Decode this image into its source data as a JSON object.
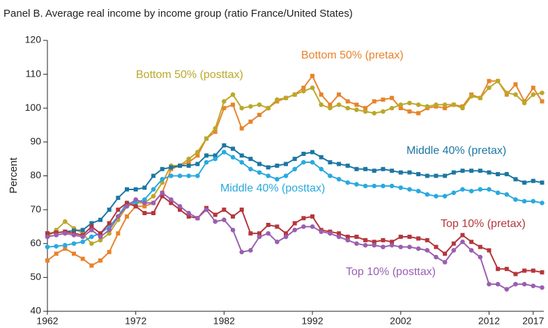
{
  "chart_data": {
    "type": "line",
    "title": "Panel B. Average real income by income group (ratio France/United States)",
    "ylabel": "Percent",
    "x": [
      1962,
      1963,
      1964,
      1965,
      1966,
      1967,
      1968,
      1969,
      1970,
      1971,
      1972,
      1973,
      1974,
      1975,
      1976,
      1977,
      1978,
      1979,
      1980,
      1981,
      1982,
      1983,
      1984,
      1985,
      1986,
      1987,
      1988,
      1989,
      1990,
      1991,
      1992,
      1993,
      1994,
      1995,
      1996,
      1997,
      1998,
      1999,
      2000,
      2001,
      2002,
      2003,
      2004,
      2005,
      2006,
      2007,
      2008,
      2009,
      2010,
      2011,
      2012,
      2013,
      2014,
      2015,
      2016,
      2017,
      2018
    ],
    "xlim": [
      1962,
      2018.2
    ],
    "xticks": [
      1962,
      1972,
      1982,
      1992,
      2002,
      2012,
      2017
    ],
    "ylim": [
      40,
      120
    ],
    "yticks": [
      40,
      50,
      60,
      70,
      80,
      90,
      100,
      110,
      120
    ],
    "series": [
      {
        "name": "Bottom 50% (pretax)",
        "color": "#e8832a",
        "marker": "square",
        "values": [
          55,
          57,
          58.5,
          57,
          55.5,
          53.5,
          55,
          57.5,
          63,
          68,
          71,
          71,
          72,
          75,
          82,
          83,
          84,
          86,
          91,
          93,
          100,
          101,
          94,
          96,
          98,
          100,
          102,
          103,
          104,
          106,
          109.5,
          104,
          101,
          104,
          102,
          101,
          100,
          102,
          102.5,
          103,
          100,
          99,
          98.5,
          100,
          100.5,
          100,
          101,
          100.5,
          104,
          103,
          108,
          108,
          104,
          107,
          102,
          106,
          102
        ]
      },
      {
        "name": "Bottom 50% (posttax)",
        "color": "#bba82a",
        "marker": "circle",
        "values": [
          62,
          64,
          66.5,
          64.5,
          63,
          60,
          61,
          63,
          67,
          71,
          72,
          72,
          74,
          78,
          83,
          83,
          85,
          87,
          91,
          94,
          102,
          104,
          100,
          100.5,
          101,
          100,
          102.5,
          103,
          104,
          105,
          106,
          101,
          100,
          101,
          100,
          99.5,
          99,
          98.5,
          99,
          100,
          101,
          101.5,
          101,
          100.5,
          101,
          101,
          101,
          100,
          103.5,
          103,
          106,
          108,
          104.5,
          104,
          101.5,
          104,
          104.5
        ]
      },
      {
        "name": "Middle 40% (pretax)",
        "color": "#1b76a3",
        "marker": "square",
        "values": [
          63,
          63.2,
          63.5,
          63.8,
          64,
          66,
          67,
          70,
          73.5,
          76,
          76,
          76.5,
          80,
          82,
          82.5,
          83,
          83,
          83.5,
          86,
          86,
          89,
          88,
          86,
          85,
          83.5,
          82.5,
          83,
          83.5,
          85,
          86.5,
          87,
          85.5,
          84,
          83.5,
          83,
          82,
          82,
          81.5,
          82,
          81.5,
          81,
          81,
          80.5,
          80,
          80,
          80,
          81,
          81.5,
          81.5,
          81.5,
          81,
          80.5,
          80.5,
          79,
          78,
          78.5,
          78
        ]
      },
      {
        "name": "Middle 40% (posttax)",
        "color": "#2aa9df",
        "marker": "circle",
        "values": [
          59,
          59.2,
          59.5,
          60,
          60.5,
          62,
          63,
          65,
          68,
          72,
          72,
          73,
          76,
          79,
          80,
          80,
          80,
          80,
          84,
          85,
          87,
          85.5,
          84,
          82,
          81,
          80,
          79,
          80,
          82,
          84,
          84,
          82,
          80,
          79,
          78,
          77.5,
          77,
          77,
          77,
          77,
          76.5,
          76,
          75.5,
          74.5,
          74,
          74,
          75,
          76,
          75.5,
          76,
          76,
          75,
          74.5,
          73,
          72.5,
          72.5,
          72
        ]
      },
      {
        "name": "Top 10% (pretax)",
        "color": "#b4363b",
        "marker": "square",
        "values": [
          63,
          63.2,
          63.5,
          63,
          62.5,
          65,
          63,
          66,
          70,
          72,
          71,
          69,
          69,
          74,
          72,
          70,
          68,
          67.5,
          70.5,
          68.5,
          70,
          68,
          70,
          63,
          63,
          65.5,
          65,
          63,
          66,
          67.5,
          68,
          64,
          63.5,
          63,
          62,
          62,
          61,
          60.5,
          61,
          60.5,
          62,
          62,
          61.5,
          61,
          59,
          57,
          60,
          62.5,
          60.5,
          59,
          58,
          52.5,
          52.5,
          51,
          52,
          52,
          51.5
        ]
      },
      {
        "name": "Top 10% (posttax)",
        "color": "#9a5fb0",
        "marker": "circle",
        "values": [
          62,
          62.5,
          63,
          62.5,
          62,
          64,
          62,
          64,
          68,
          71,
          73,
          72,
          72,
          75,
          73,
          71,
          69,
          67.5,
          70,
          66.5,
          67,
          64,
          57.5,
          58,
          62,
          63,
          60.5,
          62,
          64,
          65,
          65,
          63.5,
          63,
          62,
          61,
          60,
          59.5,
          59.5,
          59,
          59.5,
          59,
          59,
          58.5,
          58,
          56,
          54.5,
          58,
          60.5,
          58,
          56,
          48,
          48,
          46.5,
          48,
          48,
          47.5,
          47
        ]
      }
    ]
  }
}
